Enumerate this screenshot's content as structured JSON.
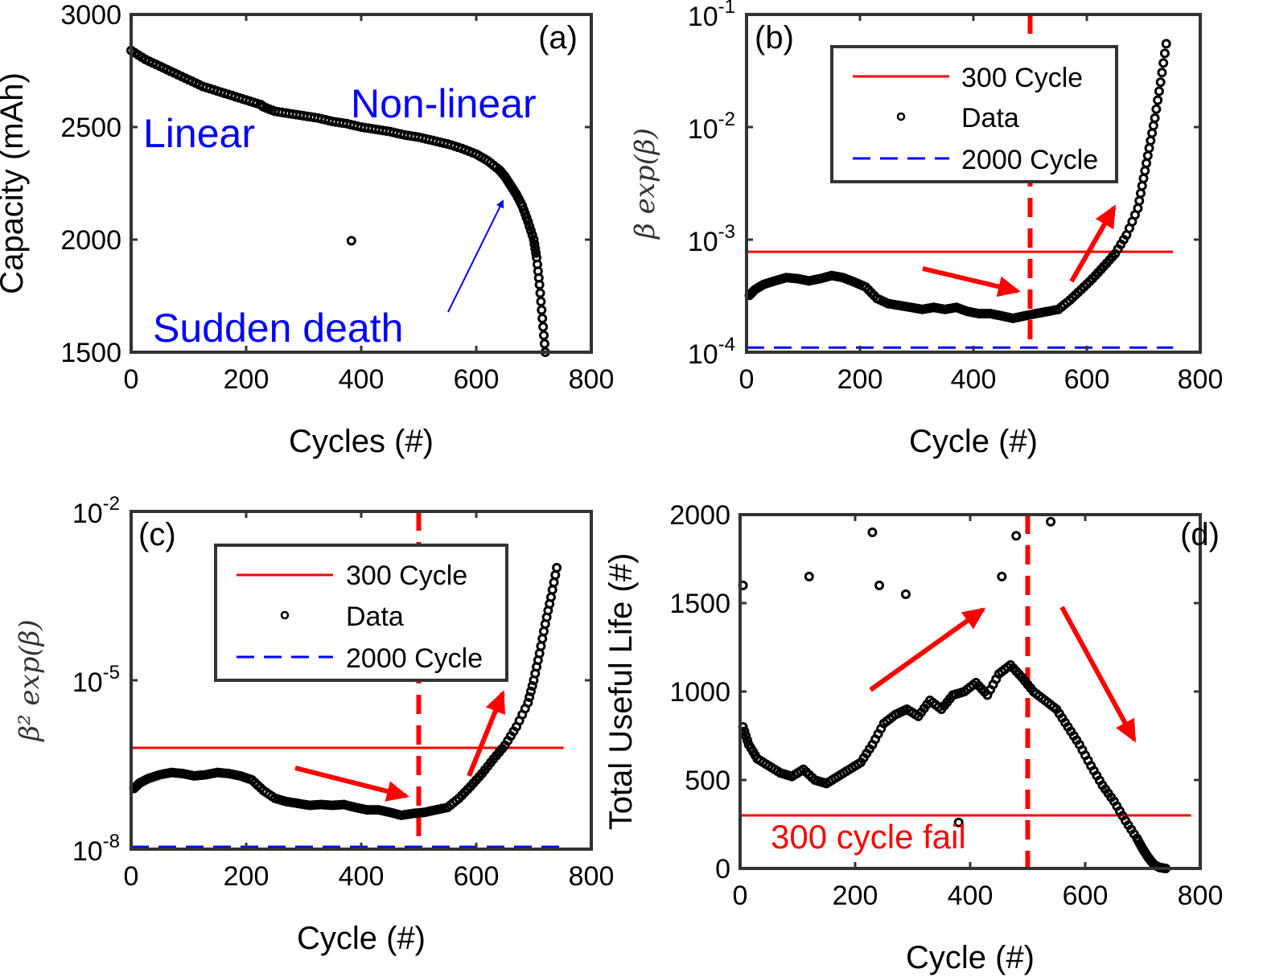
{
  "chart_data": [
    {
      "type": "scatter",
      "tag": "(a)",
      "xlabel": "Cycles (#)",
      "ylabel": "Capacity (mAh)",
      "xlim": [
        0,
        800
      ],
      "ylim": [
        1500,
        3000
      ],
      "yscale": "linear",
      "xticks": [
        "0",
        "200",
        "400",
        "600",
        "800"
      ],
      "yticks": [
        "1500",
        "2000",
        "2500",
        "3000"
      ],
      "grid": false,
      "annotations": [
        "Linear",
        "Non-linear",
        "Sudden death"
      ],
      "series": [
        {
          "marker": "open-circle",
          "color": "#000000",
          "x": [
            0,
            25,
            50,
            75,
            100,
            125,
            150,
            175,
            200,
            225,
            230,
            250,
            275,
            300,
            325,
            350,
            375,
            400,
            425,
            450,
            475,
            500,
            525,
            550,
            575,
            600,
            620,
            640,
            650,
            660,
            670,
            680,
            690,
            700,
            705,
            710,
            715,
            720
          ],
          "y": [
            2840,
            2800,
            2770,
            2740,
            2710,
            2680,
            2660,
            2640,
            2620,
            2600,
            2590,
            2570,
            2560,
            2550,
            2540,
            2525,
            2515,
            2500,
            2490,
            2480,
            2465,
            2455,
            2440,
            2425,
            2405,
            2380,
            2350,
            2310,
            2280,
            2240,
            2200,
            2150,
            2080,
            2000,
            1920,
            1800,
            1650,
            1500
          ]
        }
      ],
      "outliers": {
        "x": [
          383
        ],
        "y": [
          1995
        ]
      }
    },
    {
      "type": "scatter",
      "tag": "(b)",
      "xlabel": "Cycle (#)",
      "ylabel": "β exp(β)",
      "xlim": [
        0,
        800
      ],
      "ylim": [
        0.0001,
        0.1
      ],
      "yscale": "log",
      "xticks": [
        "0",
        "200",
        "400",
        "600",
        "800"
      ],
      "ytick_base": "10",
      "yticks_exp": [
        "-4",
        "-3",
        "-2",
        "-1"
      ],
      "grid": false,
      "legend_position": "top-right",
      "legend": [
        "300 Cycle",
        "Data",
        "2000 Cycle"
      ],
      "hlines": [
        {
          "name": "300 Cycle",
          "y": 0.00078,
          "style": "solid",
          "color": "#ff0000"
        },
        {
          "name": "2000 Cycle",
          "y": 0.00011,
          "style": "dashed",
          "color": "#0000ff"
        }
      ],
      "vline": {
        "x": 500,
        "style": "dashed",
        "color": "#ff0000"
      },
      "series": [
        {
          "name": "Data",
          "marker": "open-circle",
          "color": "#000000",
          "x": [
            5,
            15,
            30,
            50,
            70,
            90,
            110,
            130,
            150,
            170,
            190,
            210,
            230,
            250,
            270,
            290,
            310,
            330,
            350,
            370,
            390,
            410,
            430,
            450,
            470,
            490,
            510,
            530,
            550,
            570,
            590,
            610,
            630,
            650,
            670,
            690,
            700,
            710,
            720,
            730,
            740
          ],
          "y": [
            0.00032,
            0.00036,
            0.0004,
            0.00043,
            0.00046,
            0.00045,
            0.00043,
            0.00045,
            0.00048,
            0.00046,
            0.00042,
            0.00038,
            0.0003,
            0.00027,
            0.00026,
            0.00025,
            0.00024,
            0.00025,
            0.00024,
            0.00025,
            0.00023,
            0.00022,
            0.00022,
            0.00021,
            0.0002,
            0.00021,
            0.00022,
            0.00023,
            0.00024,
            0.00029,
            0.00036,
            0.00045,
            0.00058,
            0.00075,
            0.0011,
            0.0019,
            0.0035,
            0.0065,
            0.012,
            0.025,
            0.055
          ]
        }
      ]
    },
    {
      "type": "scatter",
      "tag": "(c)",
      "xlabel": "Cycle (#)",
      "ylabel": "β² exp(β)",
      "xlim": [
        0,
        800
      ],
      "ylim": [
        1e-08,
        0.01
      ],
      "yscale": "log",
      "xticks": [
        "0",
        "200",
        "400",
        "600",
        "800"
      ],
      "ytick_base": "10",
      "yticks_exp": [
        "-8",
        "-5",
        "-2"
      ],
      "grid": false,
      "legend_position": "top-center",
      "legend": [
        "300 Cycle",
        "Data",
        "2000 Cycle"
      ],
      "hlines": [
        {
          "name": "300 Cycle",
          "y": 6.3e-07,
          "style": "solid",
          "color": "#ff0000"
        },
        {
          "name": "2000 Cycle",
          "y": 1.1e-08,
          "style": "dashed",
          "color": "#0000ff"
        }
      ],
      "vline": {
        "x": 500,
        "style": "dashed",
        "color": "#ff0000"
      },
      "series": [
        {
          "name": "Data",
          "marker": "open-circle",
          "color": "#000000",
          "x": [
            5,
            15,
            30,
            50,
            70,
            90,
            110,
            130,
            150,
            170,
            190,
            210,
            230,
            250,
            270,
            290,
            310,
            330,
            350,
            370,
            390,
            410,
            430,
            450,
            470,
            490,
            510,
            530,
            550,
            570,
            590,
            610,
            630,
            650,
            670,
            690,
            700,
            710,
            720,
            730,
            740
          ],
          "y": [
            1.2e-07,
            1.5e-07,
            1.8e-07,
            2.1e-07,
            2.3e-07,
            2.2e-07,
            2e-07,
            2.1e-07,
            2.3e-07,
            2.2e-07,
            2e-07,
            1.7e-07,
            1.1e-07,
            8e-08,
            7e-08,
            6.5e-08,
            6e-08,
            6.2e-08,
            6e-08,
            6.2e-08,
            5.5e-08,
            5e-08,
            5e-08,
            4.5e-08,
            4e-08,
            4.3e-08,
            4.5e-08,
            5e-08,
            5.5e-08,
            8e-08,
            1.3e-07,
            2.2e-07,
            4e-07,
            7e-07,
            1.5e-06,
            4e-06,
            1e-05,
            3e-05,
            0.0001,
            0.0003,
            0.001
          ]
        }
      ]
    },
    {
      "type": "scatter",
      "tag": "(d)",
      "xlabel": "Cycle (#)",
      "ylabel": "Total Useful Life (#)",
      "xlim": [
        0,
        800
      ],
      "ylim": [
        0,
        2000
      ],
      "yscale": "linear",
      "xticks": [
        "0",
        "200",
        "400",
        "600",
        "800"
      ],
      "yticks": [
        "0",
        "500",
        "1000",
        "1500",
        "2000"
      ],
      "grid": false,
      "annotations": [
        "300 cycle fail"
      ],
      "hlines": [
        {
          "name": "300 cycle fail",
          "y": 300,
          "style": "solid",
          "color": "#ff0000"
        }
      ],
      "vline": {
        "x": 500,
        "style": "dashed",
        "color": "#ff0000"
      },
      "series": [
        {
          "marker": "open-circle",
          "color": "#000000",
          "x": [
            5,
            15,
            30,
            50,
            70,
            90,
            110,
            130,
            150,
            170,
            190,
            210,
            230,
            250,
            270,
            290,
            310,
            330,
            350,
            370,
            390,
            410,
            430,
            450,
            470,
            490,
            510,
            530,
            550,
            570,
            590,
            610,
            630,
            650,
            670,
            690,
            700,
            710,
            720,
            730,
            740
          ],
          "y": [
            800,
            700,
            620,
            580,
            540,
            520,
            560,
            500,
            480,
            520,
            560,
            600,
            700,
            820,
            870,
            900,
            860,
            950,
            900,
            980,
            1000,
            1050,
            980,
            1100,
            1150,
            1080,
            1000,
            950,
            900,
            800,
            700,
            580,
            470,
            380,
            270,
            170,
            110,
            60,
            20,
            5,
            0
          ]
        }
      ],
      "outliers": {
        "x": [
          5,
          120,
          230,
          242,
          288,
          380,
          455,
          480,
          540
        ],
        "y": [
          1600,
          1650,
          1900,
          1600,
          1550,
          260,
          1650,
          1880,
          1960
        ]
      }
    }
  ]
}
